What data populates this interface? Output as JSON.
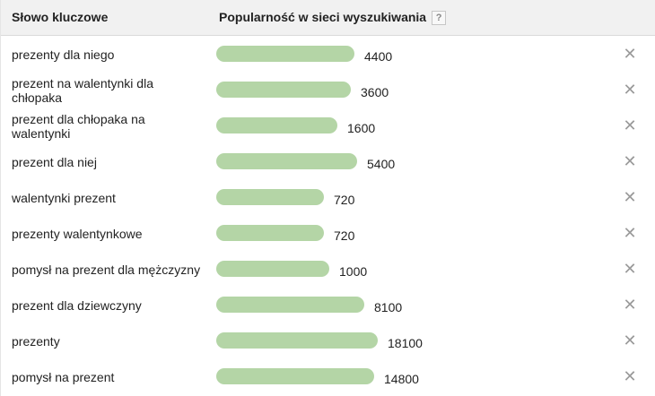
{
  "header": {
    "keyword_col": "Słowo kluczowe",
    "popularity_col": "Popularność w sieci wyszukiwania",
    "help": "?"
  },
  "rows": [
    {
      "keyword": "prezenty dla niego",
      "value": 4400,
      "value_label": "4400"
    },
    {
      "keyword": "prezent na walentynki dla chłopaka",
      "value": 3600,
      "value_label": "3600"
    },
    {
      "keyword": "prezent dla chłopaka na walentynki",
      "value": 1600,
      "value_label": "1600"
    },
    {
      "keyword": "prezent dla niej",
      "value": 5400,
      "value_label": "5400"
    },
    {
      "keyword": "walentynki prezent",
      "value": 720,
      "value_label": "720"
    },
    {
      "keyword": "prezenty walentynkowe",
      "value": 720,
      "value_label": "720"
    },
    {
      "keyword": "pomysł na prezent dla mężczyzny",
      "value": 1000,
      "value_label": "1000"
    },
    {
      "keyword": "prezent dla dziewczyny",
      "value": 8100,
      "value_label": "8100"
    },
    {
      "keyword": "prezenty",
      "value": 18100,
      "value_label": "18100"
    },
    {
      "keyword": "pomysł na prezent",
      "value": 14800,
      "value_label": "14800"
    }
  ],
  "remove_glyph": "✕",
  "colors": {
    "bar": "#b4d5a6",
    "header_bg": "#f1f1f1",
    "remove": "#9a9a9a"
  }
}
